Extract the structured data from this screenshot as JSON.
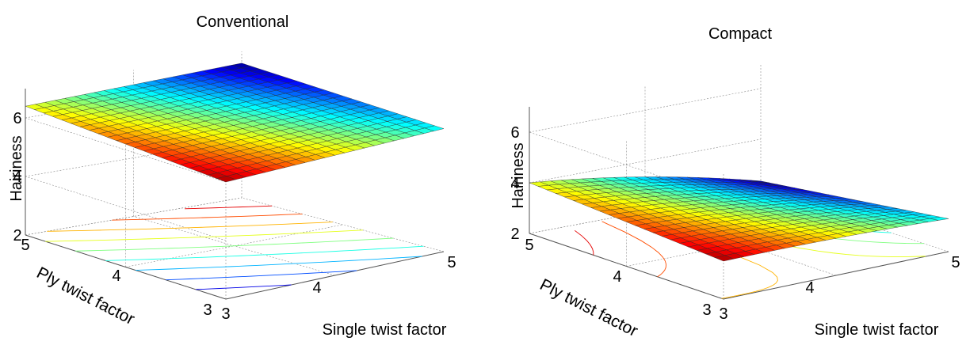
{
  "chart_data": [
    {
      "type": "surface",
      "title": "Conventional",
      "xlabel": "Single twist factor",
      "ylabel": "Ply twist factor",
      "zlabel": "Hairiness",
      "xlim": [
        3,
        5
      ],
      "ylim": [
        3,
        5
      ],
      "zlim": [
        2,
        7
      ],
      "x_ticks": [
        "3",
        "4",
        "5"
      ],
      "y_ticks": [
        "3",
        "4",
        "5"
      ],
      "z_ticks": [
        "2",
        "4",
        "6"
      ],
      "grid": true,
      "contour_projection": true,
      "colormap": "jet",
      "corners": [
        {
          "single_twist": 3,
          "ply_twist": 3,
          "hairiness": 6.0
        },
        {
          "single_twist": 5,
          "ply_twist": 3,
          "hairiness": 6.2
        },
        {
          "single_twist": 3,
          "ply_twist": 5,
          "hairiness": 6.4
        },
        {
          "single_twist": 5,
          "ply_twist": 5,
          "hairiness": 6.6
        }
      ]
    },
    {
      "type": "surface",
      "title": "Compact",
      "xlabel": "Single twist factor",
      "ylabel": "Ply twist factor",
      "zlabel": "Hairiness",
      "xlim": [
        3,
        5
      ],
      "ylim": [
        3,
        5
      ],
      "zlim": [
        2,
        7
      ],
      "x_ticks": [
        "3",
        "4",
        "5"
      ],
      "y_ticks": [
        "3",
        "4",
        "5"
      ],
      "z_ticks": [
        "2",
        "4",
        "6"
      ],
      "grid": true,
      "contour_projection": true,
      "colormap": "jet",
      "corners": [
        {
          "single_twist": 3,
          "ply_twist": 3,
          "hairiness": 3.5
        },
        {
          "single_twist": 5,
          "ply_twist": 3,
          "hairiness": 3.3
        },
        {
          "single_twist": 3,
          "ply_twist": 5,
          "hairiness": 4.0
        },
        {
          "single_twist": 5,
          "ply_twist": 5,
          "hairiness": 2.9
        }
      ]
    }
  ]
}
